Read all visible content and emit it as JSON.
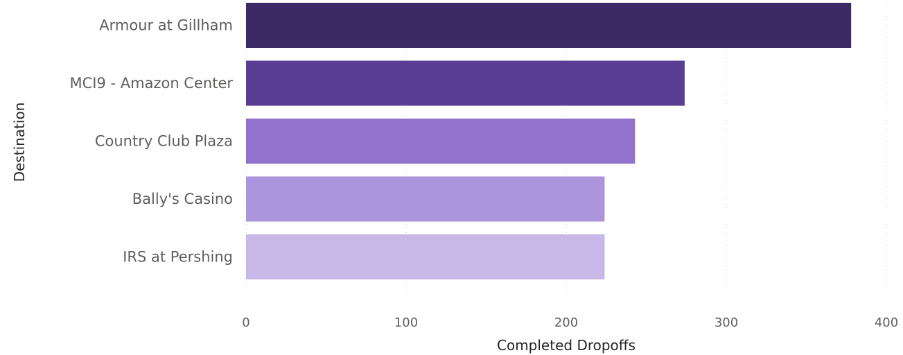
{
  "chart_data": {
    "type": "bar",
    "orientation": "horizontal",
    "categories": [
      "Armour at Gillham",
      "MCI9 - Amazon Center",
      "Country Club Plaza",
      "Bally's Casino",
      "IRS at Pershing"
    ],
    "values": [
      378,
      274,
      243,
      224,
      224
    ],
    "colors": [
      "#3b2a63",
      "#5a3d94",
      "#9173cd",
      "#ab95dd",
      "#c8b8e7"
    ],
    "xlabel": "Completed Dropoffs",
    "ylabel": "Destination",
    "xlim": [
      0,
      400
    ],
    "xticks": [
      0,
      100,
      200,
      300,
      400
    ],
    "xtick_labels": [
      "0",
      "100",
      "200",
      "300",
      "400"
    ],
    "grid": true
  }
}
